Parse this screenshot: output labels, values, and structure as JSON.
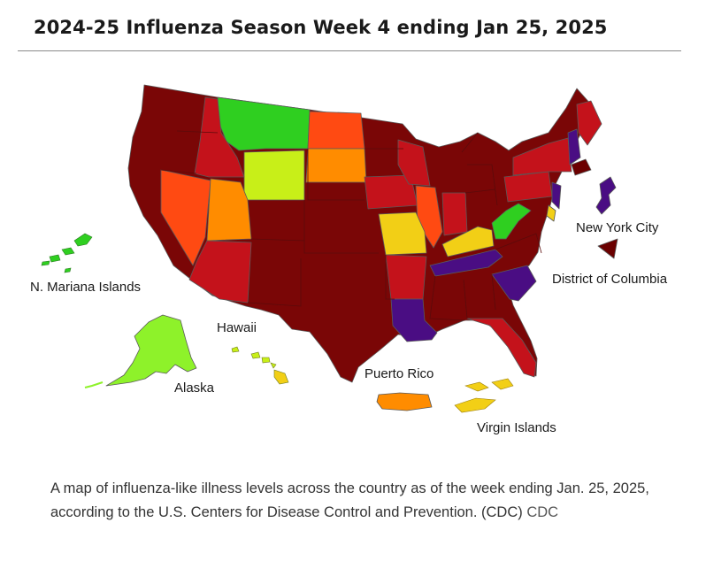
{
  "header": {
    "title": "2024-25 Influenza Season Week 4 ending Jan 25, 2025"
  },
  "map": {
    "labels": {
      "n_mariana": "N. Mariana Islands",
      "hawaii": "Hawaii",
      "alaska": "Alaska",
      "puerto_rico": "Puerto Rico",
      "virgin_islands": "Virgin Islands",
      "new_york_city": "New York City",
      "district_of_columbia": "District of Columbia"
    },
    "colors": {
      "very_high_dark": "#6b0000",
      "very_high": "#8b0a0a",
      "high_red": "#c4121b",
      "high_orangered": "#ff4a12",
      "moderate_orange": "#ff8c00",
      "moderate_yellow": "#f2cf16",
      "low_yellowgreen": "#c8ef18",
      "low_lightgreen": "#8ef22a",
      "minimal_green": "#2fcf20",
      "very_high_purple": "#4a0d83"
    }
  },
  "caption": {
    "text": "A map of influenza-like illness levels across the country as of the week ending Jan. 25, 2025, according to the U.S. Centers for Disease Control and Prevention. (CDC)",
    "credit": "CDC"
  }
}
